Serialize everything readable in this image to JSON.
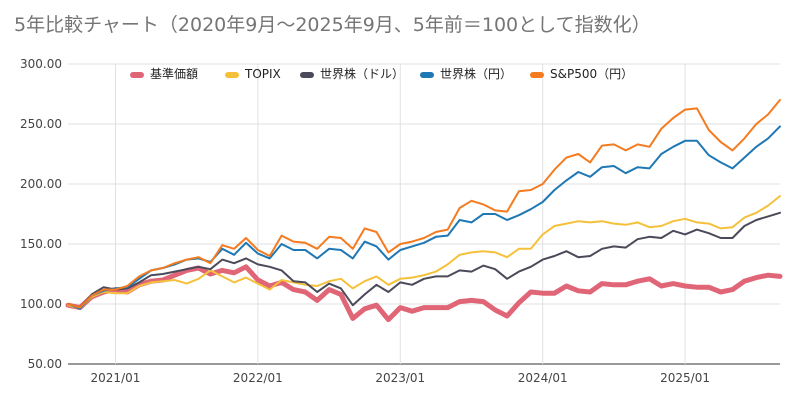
{
  "chart_data": {
    "type": "line",
    "title": "5年比較チャート（2020年9月〜2025年9月、5年前＝100として指数化）",
    "xlabel": "",
    "ylabel": "",
    "ylim": [
      50,
      300
    ],
    "yticks": [
      "50.00",
      "100.00",
      "150.00",
      "200.00",
      "250.00",
      "300.00"
    ],
    "xticks": [
      {
        "label": "2021/01",
        "at": "2021-01"
      },
      {
        "label": "2022/01",
        "at": "2022-01"
      },
      {
        "label": "2023/01",
        "at": "2023-01"
      },
      {
        "label": "2024/01",
        "at": "2024-01"
      },
      {
        "label": "2025/01",
        "at": "2025-01"
      }
    ],
    "grid": true,
    "legend_position": "top",
    "x": [
      "2020-09",
      "2020-10",
      "2020-11",
      "2020-12",
      "2021-01",
      "2021-02",
      "2021-03",
      "2021-04",
      "2021-05",
      "2021-06",
      "2021-07",
      "2021-08",
      "2021-09",
      "2021-10",
      "2021-11",
      "2021-12",
      "2022-01",
      "2022-02",
      "2022-03",
      "2022-04",
      "2022-05",
      "2022-06",
      "2022-07",
      "2022-08",
      "2022-09",
      "2022-10",
      "2022-11",
      "2022-12",
      "2023-01",
      "2023-02",
      "2023-03",
      "2023-04",
      "2023-05",
      "2023-06",
      "2023-07",
      "2023-08",
      "2023-09",
      "2023-10",
      "2023-11",
      "2023-12",
      "2024-01",
      "2024-02",
      "2024-03",
      "2024-04",
      "2024-05",
      "2024-06",
      "2024-07",
      "2024-08",
      "2024-09",
      "2024-10",
      "2024-11",
      "2024-12",
      "2025-01",
      "2025-02",
      "2025-03",
      "2025-04",
      "2025-05",
      "2025-06",
      "2025-07",
      "2025-08",
      "2025-09"
    ],
    "series": [
      {
        "name": "基準価額",
        "color": "#e06677",
        "width": 5,
        "values": [
          99,
          97,
          106,
          110,
          112,
          110,
          116,
          119,
          120,
          124,
          128,
          130,
          125,
          128,
          126,
          131,
          120,
          115,
          118,
          112,
          110,
          103,
          112,
          108,
          88,
          96,
          99,
          87,
          97,
          94,
          97,
          97,
          97,
          102,
          103,
          102,
          95,
          90,
          101,
          110,
          109,
          109,
          115,
          111,
          110,
          117,
          116,
          116,
          119,
          121,
          115,
          117,
          115,
          114,
          114,
          110,
          112,
          119,
          122,
          124,
          123
        ]
      },
      {
        "name": "TOPIX",
        "color": "#f5c13b",
        "width": 2,
        "values": [
          99,
          96,
          106,
          110,
          109,
          109,
          115,
          118,
          119,
          120,
          117,
          121,
          128,
          123,
          118,
          122,
          117,
          112,
          120,
          118,
          116,
          115,
          119,
          121,
          113,
          119,
          123,
          116,
          121,
          122,
          124,
          127,
          133,
          141,
          143,
          144,
          143,
          139,
          146,
          146,
          158,
          165,
          167,
          169,
          168,
          169,
          167,
          166,
          168,
          164,
          165,
          169,
          171,
          168,
          167,
          163,
          164,
          172,
          176,
          182,
          190
        ]
      },
      {
        "name": "世界株（ドル）",
        "color": "#4a4a5a",
        "width": 2,
        "values": [
          100,
          97,
          108,
          114,
          112,
          113,
          118,
          124,
          125,
          127,
          129,
          131,
          129,
          137,
          134,
          138,
          133,
          131,
          128,
          119,
          118,
          110,
          117,
          113,
          99,
          108,
          116,
          110,
          118,
          116,
          121,
          123,
          123,
          128,
          127,
          132,
          129,
          121,
          127,
          131,
          137,
          140,
          144,
          139,
          140,
          146,
          148,
          147,
          154,
          156,
          155,
          161,
          158,
          162,
          159,
          155,
          155,
          165,
          170,
          173,
          176
        ]
      },
      {
        "name": "世界株（円）",
        "color": "#1f78b4",
        "width": 2,
        "values": [
          100,
          96,
          107,
          111,
          113,
          114,
          121,
          128,
          130,
          133,
          137,
          138,
          135,
          146,
          141,
          151,
          142,
          138,
          150,
          145,
          145,
          138,
          146,
          145,
          138,
          152,
          148,
          137,
          145,
          148,
          151,
          156,
          157,
          170,
          168,
          175,
          175,
          170,
          174,
          179,
          185,
          195,
          203,
          210,
          206,
          214,
          215,
          209,
          214,
          213,
          225,
          231,
          236,
          236,
          224,
          218,
          213,
          222,
          231,
          238,
          248
        ]
      },
      {
        "name": "S&P500（円）",
        "color": "#f47b20",
        "width": 2,
        "values": [
          100,
          97,
          107,
          112,
          112,
          115,
          123,
          128,
          130,
          134,
          137,
          139,
          134,
          149,
          146,
          155,
          145,
          140,
          157,
          152,
          151,
          146,
          156,
          155,
          146,
          163,
          160,
          143,
          150,
          152,
          155,
          160,
          162,
          180,
          186,
          183,
          178,
          177,
          194,
          195,
          200,
          212,
          222,
          225,
          218,
          232,
          233,
          228,
          233,
          231,
          246,
          255,
          262,
          263,
          245,
          235,
          228,
          238,
          250,
          258,
          270
        ]
      }
    ]
  }
}
